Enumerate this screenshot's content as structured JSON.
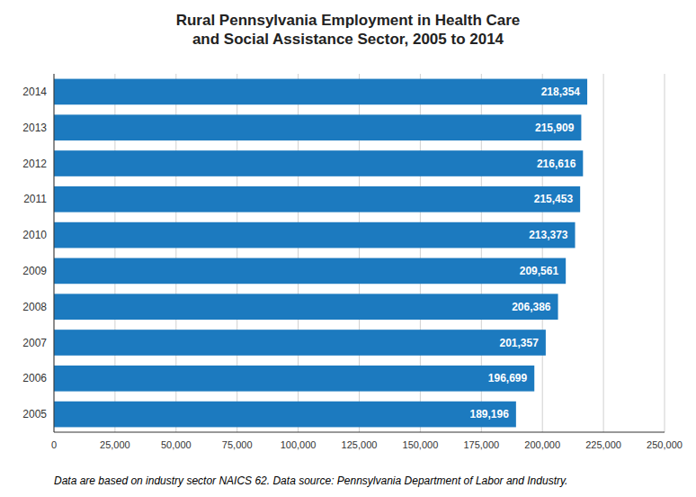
{
  "chart_data": {
    "type": "bar",
    "orientation": "horizontal",
    "title": "Rural Pennsylvania Employment in Health Care\nand Social Assistance Sector, 2005 to 2014",
    "annotations": [
      "Data are based on industry sector  NAICS 62. Data source: Pennsylvania Department of Labor and Industry."
    ],
    "categories": [
      "2005",
      "2006",
      "2007",
      "2008",
      "2009",
      "2010",
      "2011",
      "2012",
      "2013",
      "2014"
    ],
    "values": [
      189196,
      196699,
      201357,
      206386,
      209561,
      213373,
      215453,
      216616,
      215909,
      218354
    ],
    "value_labels": [
      "189,196",
      "196,699",
      "201,357",
      "206,386",
      "209,561",
      "213,373",
      "215,453",
      "216,616",
      "215,909",
      "218,354"
    ],
    "data_labels": true,
    "color": "#1c7abf",
    "xlim": [
      0,
      250000
    ],
    "xticks": [
      0,
      {
        "value": 25000,
        "label": "25,000"
      },
      {
        "value": 50000,
        "label": "50,000"
      },
      {
        "value": 75000,
        "label": "75,000"
      },
      {
        "value": 100000,
        "label": "100,000"
      },
      {
        "value": 125000,
        "label": "125,000"
      },
      {
        "value": 150000,
        "label": "150,000"
      },
      {
        "value": 175000,
        "label": "175,000"
      },
      {
        "value": 200000,
        "label": "200,000"
      },
      {
        "value": 225000,
        "label": "225,000"
      },
      {
        "value": 250000,
        "label": "250,000"
      }
    ],
    "grid": true
  }
}
